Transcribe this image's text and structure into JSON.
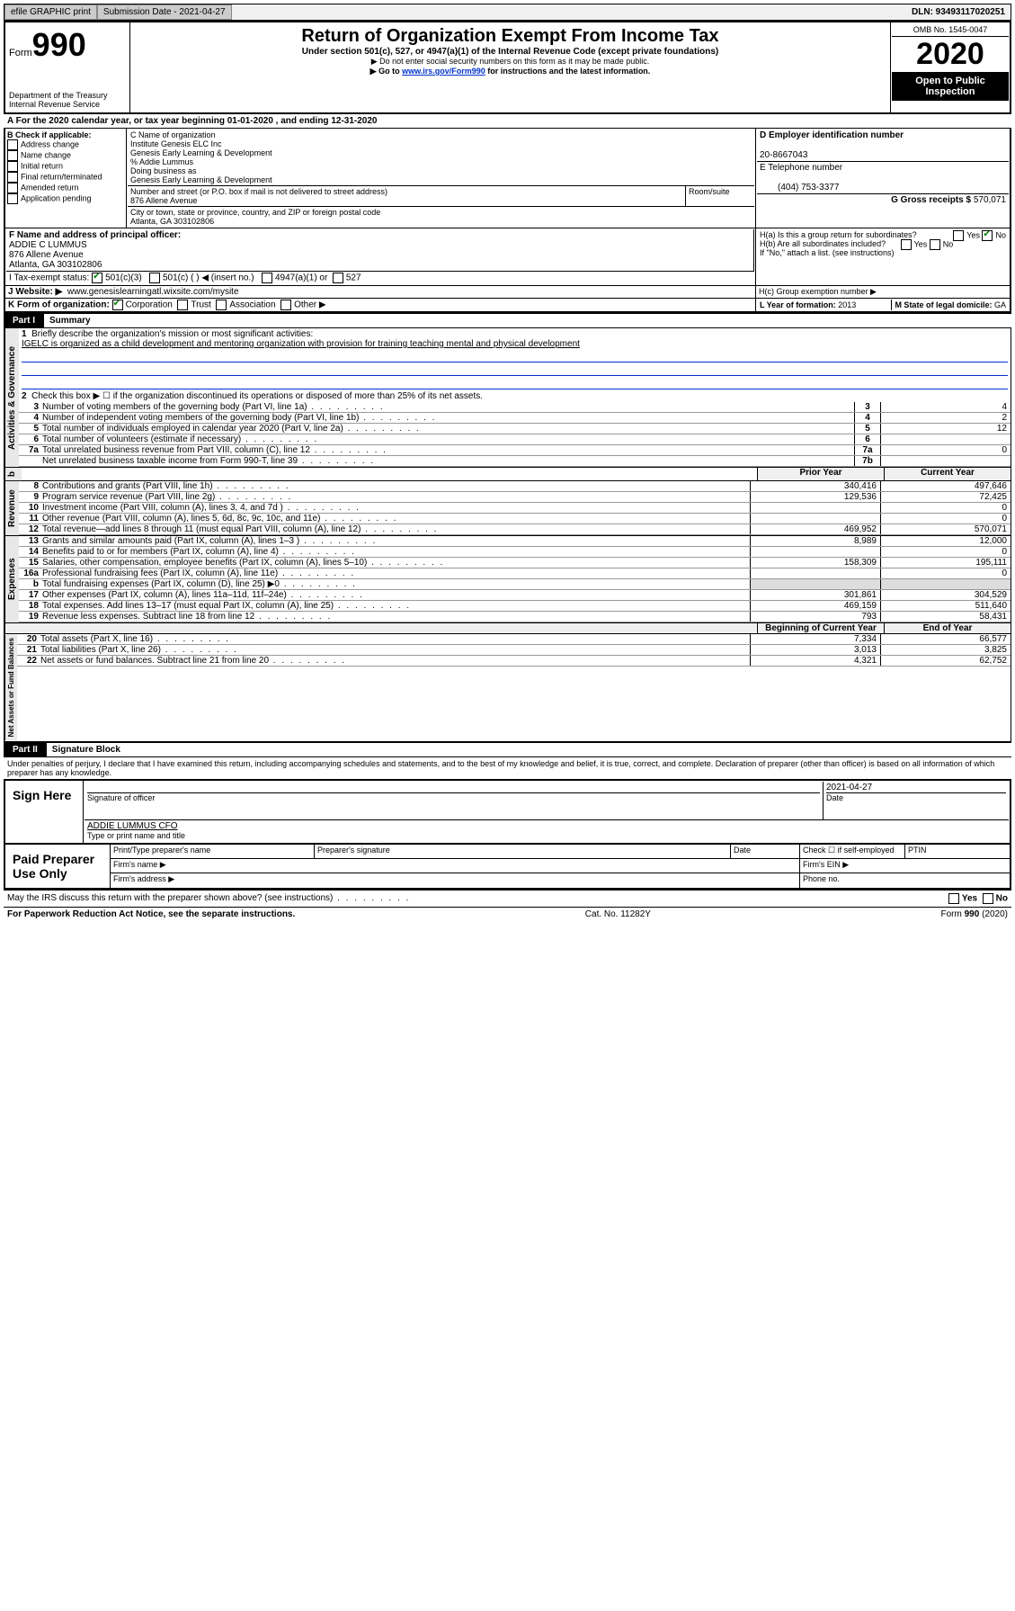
{
  "topbar": {
    "efile": "efile GRAPHIC print",
    "submission": "Submission Date - 2021-04-27",
    "dln": "DLN: 93493117020251"
  },
  "header": {
    "form_prefix": "Form",
    "form_number": "990",
    "title": "Return of Organization Exempt From Income Tax",
    "subtitle": "Under section 501(c), 527, or 4947(a)(1) of the Internal Revenue Code (except private foundations)",
    "note1": "▶ Do not enter social security numbers on this form as it may be made public.",
    "note2_pre": "▶ Go to ",
    "note2_link": "www.irs.gov/Form990",
    "note2_post": " for instructions and the latest information.",
    "dept": "Department of the Treasury\nInternal Revenue Service",
    "omb": "OMB No. 1545-0047",
    "year": "2020",
    "open_public": "Open to Public Inspection"
  },
  "row_a": "A For the 2020 calendar year, or tax year beginning 01-01-2020   , and ending 12-31-2020",
  "box_b": {
    "label": "B Check if applicable:",
    "items": [
      "Address change",
      "Name change",
      "Initial return",
      "Final return/terminated",
      "Amended return",
      "Application pending"
    ]
  },
  "box_c": {
    "label": "C Name of organization",
    "name": "Institute Genesis ELC Inc",
    "line2": "Genesis Early Learning & Development",
    "care_of": "% Addie Lummus",
    "dba_label": "Doing business as",
    "dba": "Genesis Early Learning & Development",
    "addr_label": "Number and street (or P.O. box if mail is not delivered to street address)",
    "room_label": "Room/suite",
    "addr": "876 Allene Avenue",
    "city_label": "City or town, state or province, country, and ZIP or foreign postal code",
    "city": "Atlanta, GA  303102806"
  },
  "box_d": {
    "label": "D Employer identification number",
    "value": "20-8667043"
  },
  "box_e": {
    "label": "E Telephone number",
    "value": "(404) 753-3377"
  },
  "box_g": {
    "label": "G Gross receipts $",
    "value": "570,071"
  },
  "box_f": {
    "label": "F  Name and address of principal officer:",
    "name": "ADDIE C LUMMUS",
    "addr1": "876 Allene Avenue",
    "addr2": "Atlanta, GA  303102806"
  },
  "box_h": {
    "ha": "H(a)  Is this a group return for subordinates?",
    "hb": "H(b)  Are all subordinates included?",
    "hb_note": "If \"No,\" attach a list. (see instructions)",
    "hc": "H(c)  Group exemption number ▶",
    "yes": "Yes",
    "no": "No"
  },
  "box_i": {
    "label": "I   Tax-exempt status:",
    "o1": "501(c)(3)",
    "o2": "501(c) (  ) ◀ (insert no.)",
    "o3": "4947(a)(1) or",
    "o4": "527"
  },
  "box_j": {
    "label": "J   Website: ▶",
    "value": "www.genesislearningatl.wixsite.com/mysite"
  },
  "box_k": {
    "label": "K Form of organization:",
    "o1": "Corporation",
    "o2": "Trust",
    "o3": "Association",
    "o4": "Other ▶"
  },
  "box_l": {
    "label": "L Year of formation:",
    "value": "2013"
  },
  "box_m": {
    "label": "M State of legal domicile:",
    "value": "GA"
  },
  "part1": {
    "label": "Part I",
    "title": "Summary"
  },
  "summary": {
    "q1a": "Briefly describe the organization's mission or most significant activities:",
    "q1b": "IGELC is organized as a child development and mentoring organization with provision for training teaching mental and physical development",
    "q2": "Check this box ▶ ☐  if the organization discontinued its operations or disposed of more than 25% of its net assets.",
    "lines_ag": [
      {
        "n": "3",
        "t": "Number of voting members of the governing body (Part VI, line 1a)",
        "b": "3",
        "v": "4"
      },
      {
        "n": "4",
        "t": "Number of independent voting members of the governing body (Part VI, line 1b)",
        "b": "4",
        "v": "2"
      },
      {
        "n": "5",
        "t": "Total number of individuals employed in calendar year 2020 (Part V, line 2a)",
        "b": "5",
        "v": "12"
      },
      {
        "n": "6",
        "t": "Total number of volunteers (estimate if necessary)",
        "b": "6",
        "v": ""
      },
      {
        "n": "7a",
        "t": "Total unrelated business revenue from Part VIII, column (C), line 12",
        "b": "7a",
        "v": "0"
      },
      {
        "n": "",
        "t": "Net unrelated business taxable income from Form 990-T, line 39",
        "b": "7b",
        "v": ""
      }
    ],
    "col_prior": "Prior Year",
    "col_curr": "Current Year",
    "col_beg": "Beginning of Current Year",
    "col_end": "End of Year",
    "revenue": [
      {
        "n": "8",
        "t": "Contributions and grants (Part VIII, line 1h)",
        "p": "340,416",
        "c": "497,646"
      },
      {
        "n": "9",
        "t": "Program service revenue (Part VIII, line 2g)",
        "p": "129,536",
        "c": "72,425"
      },
      {
        "n": "10",
        "t": "Investment income (Part VIII, column (A), lines 3, 4, and 7d )",
        "p": "",
        "c": "0"
      },
      {
        "n": "11",
        "t": "Other revenue (Part VIII, column (A), lines 5, 6d, 8c, 9c, 10c, and 11e)",
        "p": "",
        "c": "0"
      },
      {
        "n": "12",
        "t": "Total revenue—add lines 8 through 11 (must equal Part VIII, column (A), line 12)",
        "p": "469,952",
        "c": "570,071"
      }
    ],
    "expenses": [
      {
        "n": "13",
        "t": "Grants and similar amounts paid (Part IX, column (A), lines 1–3 )",
        "p": "8,989",
        "c": "12,000"
      },
      {
        "n": "14",
        "t": "Benefits paid to or for members (Part IX, column (A), line 4)",
        "p": "",
        "c": "0"
      },
      {
        "n": "15",
        "t": "Salaries, other compensation, employee benefits (Part IX, column (A), lines 5–10)",
        "p": "158,309",
        "c": "195,111"
      },
      {
        "n": "16a",
        "t": "Professional fundraising fees (Part IX, column (A), line 11e)",
        "p": "",
        "c": "0"
      },
      {
        "n": "b",
        "t": "Total fundraising expenses (Part IX, column (D), line 25) ▶0",
        "p": "—",
        "c": "—"
      },
      {
        "n": "17",
        "t": "Other expenses (Part IX, column (A), lines 11a–11d, 11f–24e)",
        "p": "301,861",
        "c": "304,529"
      },
      {
        "n": "18",
        "t": "Total expenses. Add lines 13–17 (must equal Part IX, column (A), line 25)",
        "p": "469,159",
        "c": "511,640"
      },
      {
        "n": "19",
        "t": "Revenue less expenses. Subtract line 18 from line 12",
        "p": "793",
        "c": "58,431"
      }
    ],
    "netassets": [
      {
        "n": "20",
        "t": "Total assets (Part X, line 16)",
        "p": "7,334",
        "c": "66,577"
      },
      {
        "n": "21",
        "t": "Total liabilities (Part X, line 26)",
        "p": "3,013",
        "c": "3,825"
      },
      {
        "n": "22",
        "t": "Net assets or fund balances. Subtract line 21 from line 20",
        "p": "4,321",
        "c": "62,752"
      }
    ],
    "sections": {
      "ag": "Activities & Governance",
      "rev": "Revenue",
      "exp": "Expenses",
      "na": "Net Assets or Fund Balances"
    }
  },
  "part2": {
    "label": "Part II",
    "title": "Signature Block"
  },
  "sig": {
    "perjury": "Under penalties of perjury, I declare that I have examined this return, including accompanying schedules and statements, and to the best of my knowledge and belief, it is true, correct, and complete. Declaration of preparer (other than officer) is based on all information of which preparer has any knowledge.",
    "date": "2021-04-27",
    "sig_officer": "Signature of officer",
    "date_lbl": "Date",
    "name": "ADDIE LUMMUS  CFO",
    "name_lbl": "Type or print name and title",
    "sign_here": "Sign Here",
    "paid": "Paid Preparer Use Only",
    "prep_name": "Print/Type preparer's name",
    "prep_sig": "Preparer's signature",
    "check_self": "Check ☐ if self-employed",
    "ptin": "PTIN",
    "firm_name": "Firm's name  ▶",
    "firm_ein": "Firm's EIN ▶",
    "firm_addr": "Firm's address ▶",
    "phone": "Phone no.",
    "discuss": "May the IRS discuss this return with the preparer shown above? (see instructions)"
  },
  "footer": {
    "left": "For Paperwork Reduction Act Notice, see the separate instructions.",
    "mid": "Cat. No. 11282Y",
    "right": "Form 990 (2020)"
  }
}
